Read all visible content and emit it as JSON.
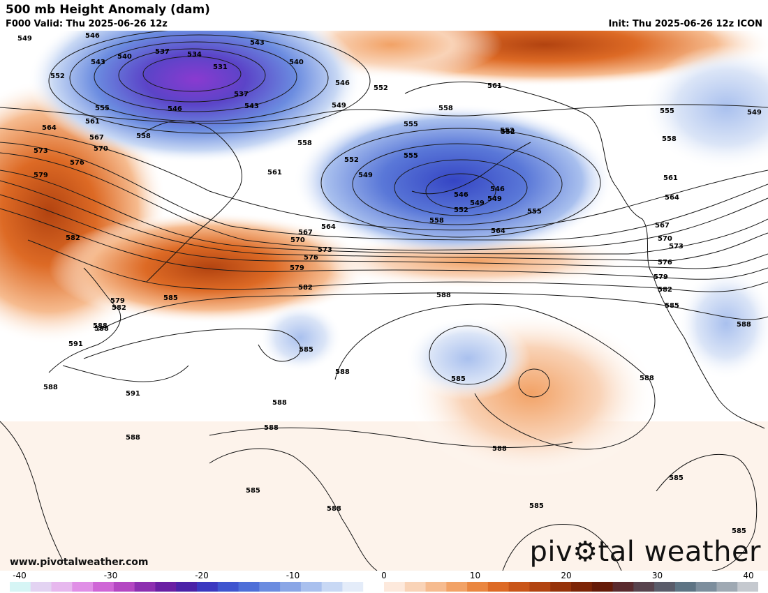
{
  "header": {
    "title": "500 mb Height Anomaly (dam)",
    "valid": "F000 Valid: Thu 2025-06-26 12z",
    "init": "Init: Thu 2025-06-26 12z ICON"
  },
  "watermark": "www.pivotalweather.com",
  "logo": {
    "text_left": "piv",
    "text_right": "tal weather",
    "icon": "gear-o-icon"
  },
  "colorbar": {
    "ticks": [
      "-40",
      "-30",
      "-20",
      "-10",
      "0",
      "10",
      "20",
      "30",
      "40"
    ],
    "colors": [
      "#d6f5f5",
      "#e3d3f2",
      "#e7b8ee",
      "#e08fe6",
      "#cf66d6",
      "#b447c2",
      "#8d2fb0",
      "#6a1fa3",
      "#4b22a8",
      "#3b38c0",
      "#3f55cf",
      "#4e6fd8",
      "#6b8ce0",
      "#8aa6e6",
      "#a9c0ee",
      "#c8d8f4",
      "#e4ecf9",
      "#ffffff",
      "#fde9dc",
      "#f9d3b7",
      "#f6bb8f",
      "#f2a266",
      "#ea8640",
      "#dd6a25",
      "#c95518",
      "#b24310",
      "#963209",
      "#7d2406",
      "#651a08",
      "#5a2a2e",
      "#58434d",
      "#5a5c6a",
      "#5e7484",
      "#7d8e9d",
      "#9fa9b3",
      "#c5c9cf"
    ],
    "range": [
      -40,
      40
    ]
  },
  "contour_labels": [
    "549",
    "546",
    "543",
    "540",
    "537",
    "534",
    "531",
    "543",
    "540",
    "546",
    "552",
    "549",
    "546",
    "543",
    "537",
    "552",
    "555",
    "558",
    "561",
    "564",
    "567",
    "570",
    "573",
    "576",
    "579",
    "582",
    "585",
    "588",
    "591",
    "558",
    "555",
    "552",
    "549",
    "546",
    "549",
    "552",
    "555",
    "558",
    "561",
    "564",
    "567",
    "570",
    "573",
    "576",
    "579",
    "582",
    "585",
    "588",
    "564",
    "561",
    "558",
    "552",
    "555",
    "549",
    "558",
    "561",
    "564",
    "567",
    "570",
    "573",
    "576",
    "579",
    "582",
    "585",
    "588",
    "555",
    "552",
    "549",
    "546",
    "579",
    "582",
    "588",
    "591",
    "588",
    "588",
    "588",
    "588",
    "588",
    "585",
    "585",
    "588",
    "588",
    "585",
    "585",
    "585",
    "588"
  ]
}
